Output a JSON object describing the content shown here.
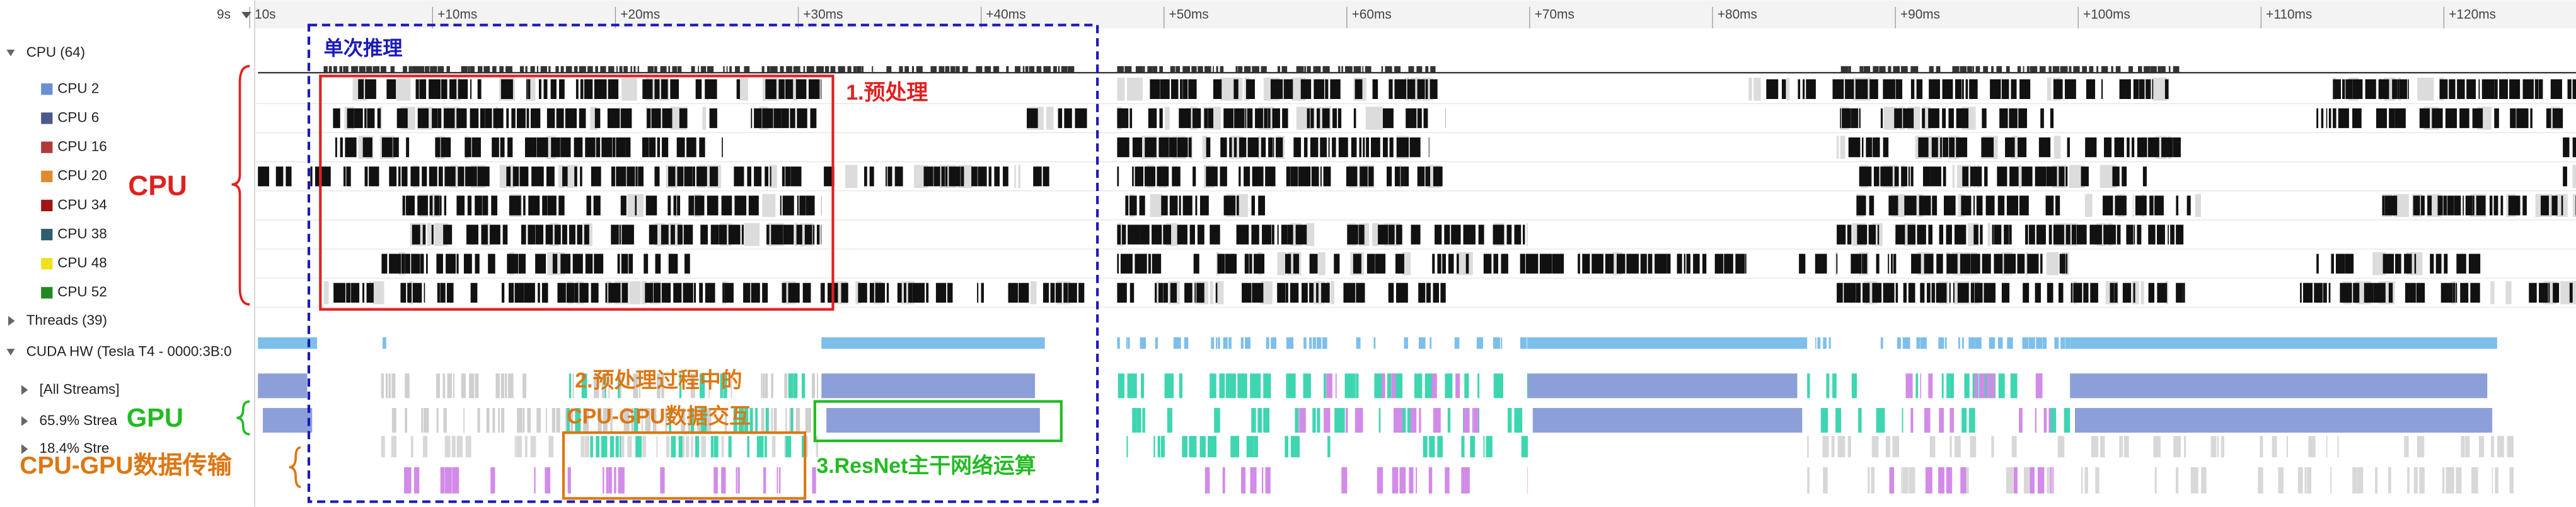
{
  "ruler": {
    "start": "9s",
    "ticks": [
      "10s",
      "+10ms",
      "+20ms",
      "+30ms",
      "+40ms",
      "+50ms",
      "+60ms",
      "+70ms",
      "+80ms",
      "+90ms",
      "+100ms",
      "+110ms",
      "+120ms"
    ]
  },
  "cpu_group": "CPU (64)",
  "cpu_cores": [
    {
      "label": "CPU 2",
      "color": "#6b8fd6"
    },
    {
      "label": "CPU 6",
      "color": "#4a5a8a"
    },
    {
      "label": "CPU 16",
      "color": "#b03a3a"
    },
    {
      "label": "CPU 20",
      "color": "#e08a30"
    },
    {
      "label": "CPU 34",
      "color": "#a01414"
    },
    {
      "label": "CPU 38",
      "color": "#2f5f6f"
    },
    {
      "label": "CPU 48",
      "color": "#f0e020"
    },
    {
      "label": "CPU 52",
      "color": "#208a20"
    }
  ],
  "threads": "Threads (39)",
  "cuda_hw": "CUDA HW (Tesla T4 - 0000:3B:0",
  "streams": [
    "[All Streams]",
    "65.9% Strea",
    "18.4% Stre"
  ],
  "annotations": {
    "single_inference": "单次推理",
    "preprocess": "1.预处理",
    "cpu": "CPU",
    "gpu": "GPU",
    "transfer": "CPU-GPU数据传输",
    "interaction_line1": "2.预处理过程中的",
    "interaction_line2": "CPU-GPU数据交互",
    "resnet": "3.ResNet主干网络运算"
  }
}
